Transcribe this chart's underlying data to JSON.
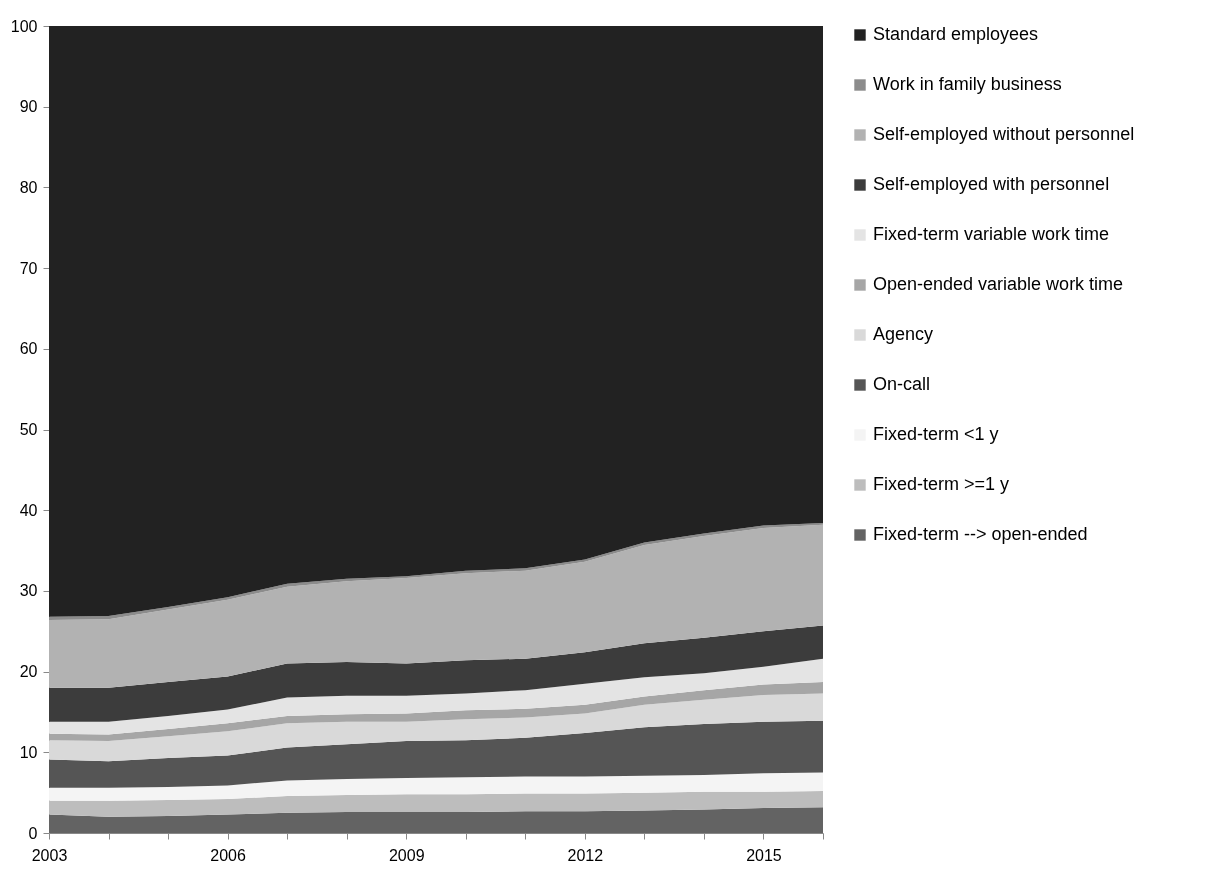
{
  "chart_data": {
    "type": "area",
    "stacked": true,
    "x": [
      2003,
      2004,
      2005,
      2006,
      2007,
      2008,
      2009,
      2010,
      2011,
      2012,
      2013,
      2014,
      2015,
      2016
    ],
    "xlim": [
      2003,
      2016
    ],
    "xticks": [
      2003,
      {
        "value": 2004,
        "label": null
      },
      {
        "value": 2005,
        "label": null
      },
      2006,
      {
        "value": 2007,
        "label": null
      },
      {
        "value": 2008,
        "label": null
      },
      2009,
      {
        "value": 2010,
        "label": null
      },
      {
        "value": 2011,
        "label": null
      },
      2012,
      {
        "value": 2013,
        "label": null
      },
      {
        "value": 2014,
        "label": null
      },
      2015,
      {
        "value": 2016,
        "label": null
      }
    ],
    "ylim": [
      0,
      100
    ],
    "yticks": [
      0,
      10,
      20,
      30,
      40,
      50,
      60,
      70,
      80,
      90,
      100
    ],
    "grid": false,
    "legend": "right",
    "series": [
      {
        "name": "Fixed-term --> open-ended",
        "color": "#636363",
        "values": [
          2.3,
          2.0,
          2.1,
          2.3,
          2.5,
          2.6,
          2.6,
          2.6,
          2.7,
          2.7,
          2.8,
          2.9,
          3.1,
          3.2
        ]
      },
      {
        "name": "Fixed-term >=1 y",
        "color": "#bdbdbd",
        "values": [
          1.7,
          2.0,
          2.0,
          1.9,
          2.1,
          2.1,
          2.2,
          2.2,
          2.2,
          2.2,
          2.2,
          2.2,
          2.0,
          2.0
        ]
      },
      {
        "name": "Fixed-term <1 y",
        "color": "#f4f4f4",
        "values": [
          1.6,
          1.6,
          1.6,
          1.7,
          1.9,
          2.0,
          2.0,
          2.1,
          2.1,
          2.1,
          2.1,
          2.1,
          2.3,
          2.3
        ]
      },
      {
        "name": "On-call",
        "color": "#555555",
        "values": [
          3.5,
          3.3,
          3.6,
          3.7,
          4.1,
          4.3,
          4.6,
          4.6,
          4.8,
          5.4,
          6.0,
          6.3,
          6.4,
          6.4
        ]
      },
      {
        "name": "Agency",
        "color": "#d9d9d9",
        "values": [
          2.4,
          2.5,
          2.7,
          3.0,
          3.0,
          2.8,
          2.4,
          2.6,
          2.5,
          2.4,
          2.8,
          3.0,
          3.3,
          3.4
        ]
      },
      {
        "name": "Open-ended variable work time",
        "color": "#a6a6a6",
        "values": [
          0.8,
          0.8,
          0.9,
          1.0,
          0.9,
          0.9,
          1.0,
          1.1,
          1.1,
          1.1,
          1.0,
          1.2,
          1.3,
          1.4
        ]
      },
      {
        "name": "Fixed-term variable work time",
        "color": "#e4e4e4",
        "values": [
          1.5,
          1.6,
          1.6,
          1.7,
          2.3,
          2.3,
          2.2,
          2.1,
          2.3,
          2.6,
          2.4,
          2.1,
          2.2,
          2.9
        ]
      },
      {
        "name": "Self-employed with personnel",
        "color": "#3c3c3c",
        "values": [
          4.2,
          4.2,
          4.2,
          4.1,
          4.2,
          4.2,
          4.0,
          4.1,
          3.9,
          3.9,
          4.2,
          4.4,
          4.4,
          4.1
        ]
      },
      {
        "name": "Self-employed without personnel",
        "color": "#b2b2b2",
        "values": [
          8.4,
          8.5,
          9.0,
          9.5,
          9.5,
          10.0,
          10.6,
          10.8,
          10.9,
          11.2,
          12.2,
          12.6,
          12.8,
          12.5
        ]
      },
      {
        "name": "Work in family business",
        "color": "#8c8c8c",
        "values": [
          0.4,
          0.4,
          0.3,
          0.3,
          0.4,
          0.3,
          0.2,
          0.3,
          0.3,
          0.3,
          0.3,
          0.3,
          0.3,
          0.2
        ]
      },
      {
        "name": "Standard employees",
        "color": "#222222",
        "values": [
          73.2,
          73.1,
          72.0,
          70.8,
          69.1,
          68.5,
          68.2,
          67.5,
          67.2,
          66.1,
          64.0,
          62.9,
          61.9,
          61.6
        ]
      }
    ]
  }
}
